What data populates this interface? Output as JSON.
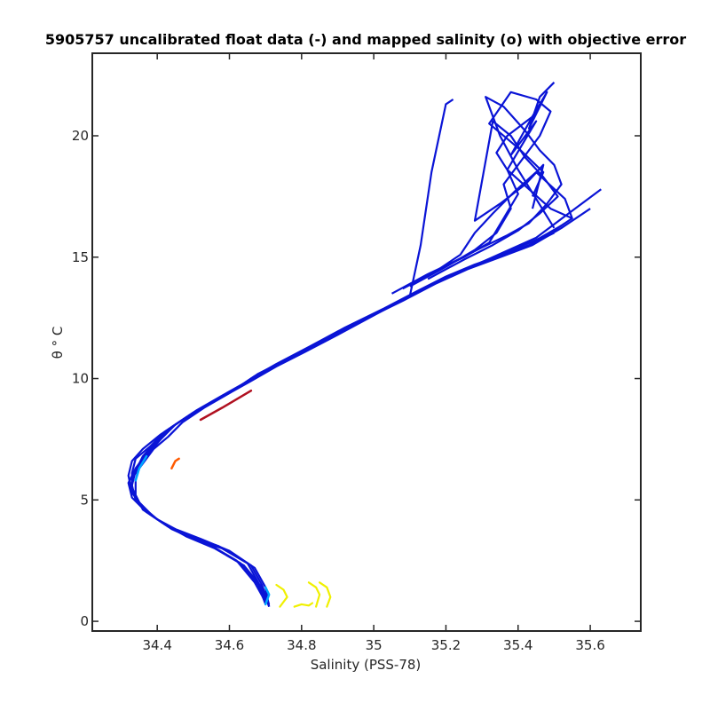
{
  "chart_data": {
    "type": "line",
    "title": "5905757 uncalibrated float data (-) and mapped salinity (o) with objective error",
    "xlabel": "Salinity (PSS-78)",
    "ylabel": "θ ° C",
    "xlim": [
      34.22,
      35.74
    ],
    "ylim": [
      -0.4,
      23.4
    ],
    "xticks": [
      "34.4",
      "34.6",
      "34.8",
      "35",
      "35.2",
      "35.4",
      "35.6"
    ],
    "yticks": [
      "0",
      "5",
      "10",
      "15",
      "20"
    ],
    "grid": false,
    "legend": "none",
    "colors": {
      "float_profiles": "#0a14d6",
      "deep_highlight": "#00a6ff",
      "mid_highlight": "#b01020",
      "orange_mark": "#ff5a00",
      "mapped_salinity": "#f0f000"
    },
    "series": [
      {
        "x": [
          34.71,
          34.7,
          34.67,
          34.6,
          34.52,
          34.45,
          34.4,
          34.36,
          34.33,
          34.32,
          34.33,
          34.36,
          34.41,
          34.47,
          34.54,
          34.6,
          34.66,
          34.73,
          34.82,
          34.92,
          35.03,
          35.12,
          35.2,
          35.28,
          35.36,
          35.43,
          35.5
        ],
        "y": [
          0.6,
          1.4,
          2.2,
          2.9,
          3.4,
          3.8,
          4.2,
          4.7,
          5.3,
          6.0,
          6.6,
          7.1,
          7.7,
          8.3,
          8.9,
          9.4,
          10.0,
          10.6,
          11.3,
          12.1,
          12.9,
          13.6,
          14.2,
          14.7,
          15.1,
          15.5,
          16.0
        ]
      },
      {
        "x": [
          34.71,
          34.69,
          34.66,
          34.58,
          34.5,
          34.44,
          34.39,
          34.35,
          34.33,
          34.33,
          34.34,
          34.38,
          34.42,
          34.48,
          34.55,
          34.61,
          34.67,
          34.75,
          34.84,
          34.94,
          35.05,
          35.14,
          35.22,
          35.3,
          35.38,
          35.45,
          35.52
        ],
        "y": [
          0.7,
          1.5,
          2.3,
          3.0,
          3.4,
          3.8,
          4.3,
          4.9,
          5.5,
          6.1,
          6.7,
          7.2,
          7.8,
          8.4,
          9.0,
          9.5,
          10.1,
          10.7,
          11.4,
          12.2,
          13.0,
          13.7,
          14.3,
          14.8,
          15.3,
          15.7,
          16.3
        ]
      },
      {
        "x": [
          34.7,
          34.68,
          34.65,
          34.57,
          34.49,
          34.43,
          34.38,
          34.34,
          34.33,
          34.34,
          34.36,
          34.39,
          34.43,
          34.49,
          34.56,
          34.62,
          34.68,
          34.76,
          34.85,
          34.95,
          35.06,
          35.15,
          35.24,
          35.32,
          35.4,
          35.48,
          35.55
        ],
        "y": [
          0.8,
          1.6,
          2.4,
          3.1,
          3.5,
          3.9,
          4.4,
          5.0,
          5.6,
          6.2,
          6.8,
          7.3,
          7.9,
          8.5,
          9.1,
          9.6,
          10.2,
          10.8,
          11.5,
          12.3,
          13.1,
          13.8,
          14.4,
          14.9,
          15.4,
          15.9,
          16.6
        ]
      },
      {
        "x": [
          34.71,
          34.69,
          34.64,
          34.56,
          34.48,
          34.42,
          34.37,
          34.33,
          34.32,
          34.34,
          34.37,
          34.4,
          34.44,
          34.5,
          34.57,
          34.63,
          34.7,
          34.78,
          34.87,
          34.97,
          35.08,
          35.17,
          35.26,
          35.35,
          35.44,
          35.52,
          35.6
        ],
        "y": [
          0.6,
          1.4,
          2.3,
          3.0,
          3.5,
          4.0,
          4.5,
          5.1,
          5.7,
          6.3,
          6.9,
          7.4,
          8.0,
          8.6,
          9.2,
          9.7,
          10.3,
          10.9,
          11.6,
          12.4,
          13.2,
          13.9,
          14.5,
          15.0,
          15.5,
          16.2,
          17.0
        ]
      },
      {
        "x": [
          34.7,
          34.68,
          34.63,
          34.55,
          34.47,
          34.41,
          34.36,
          34.34,
          34.34,
          34.35,
          34.38,
          34.41,
          34.45,
          34.51,
          34.58,
          34.64,
          34.71,
          34.79,
          34.88,
          34.98,
          35.09,
          35.18,
          35.27,
          35.36,
          35.45,
          35.54,
          35.63
        ],
        "y": [
          0.7,
          1.5,
          2.4,
          3.1,
          3.6,
          4.1,
          4.6,
          5.2,
          5.8,
          6.4,
          7.0,
          7.5,
          8.1,
          8.7,
          9.3,
          9.8,
          10.4,
          11.0,
          11.7,
          12.5,
          13.3,
          14.0,
          14.6,
          15.2,
          15.8,
          16.8,
          17.8
        ]
      },
      {
        "x": [
          34.7,
          34.67,
          34.62,
          34.54,
          34.46,
          34.4,
          34.36,
          34.33,
          34.33,
          34.36,
          34.39,
          34.43,
          34.47,
          34.53,
          34.6,
          34.66,
          34.73,
          34.81,
          34.9,
          35.0,
          35.1,
          35.13,
          35.16,
          35.2,
          35.22
        ],
        "y": [
          0.8,
          1.6,
          2.5,
          3.2,
          3.7,
          4.2,
          4.7,
          5.3,
          5.9,
          6.5,
          7.1,
          7.6,
          8.2,
          8.8,
          9.4,
          9.9,
          10.5,
          11.1,
          11.8,
          12.6,
          13.4,
          15.5,
          18.5,
          21.3,
          21.5
        ]
      },
      {
        "x": [
          35.05,
          35.15,
          35.25,
          35.32,
          35.36,
          35.4,
          35.37,
          35.41,
          35.45,
          35.38,
          35.44,
          35.48,
          35.43,
          35.46,
          35.5
        ],
        "y": [
          13.5,
          14.3,
          15.0,
          15.6,
          16.6,
          17.6,
          18.6,
          19.6,
          20.6,
          19.2,
          20.8,
          21.8,
          20.3,
          21.6,
          22.2
        ]
      },
      {
        "x": [
          35.1,
          35.2,
          35.28,
          35.34,
          35.38,
          35.36,
          35.41,
          35.46,
          35.49,
          35.45,
          35.38,
          35.32,
          35.4,
          35.47,
          35.44
        ],
        "y": [
          13.8,
          14.6,
          15.3,
          16.0,
          17.0,
          18.0,
          19.0,
          20.0,
          21.0,
          21.5,
          21.8,
          20.5,
          19.5,
          18.5,
          17.5
        ]
      },
      {
        "x": [
          35.12,
          35.22,
          35.3,
          35.37,
          35.43,
          35.48,
          35.52,
          35.5,
          35.46,
          35.42,
          35.36,
          35.31,
          35.35,
          35.4,
          35.45,
          35.5
        ],
        "y": [
          14.0,
          14.8,
          15.4,
          15.9,
          16.4,
          17.2,
          18.0,
          18.8,
          19.4,
          20.2,
          21.2,
          21.6,
          20.0,
          18.6,
          17.4,
          16.2
        ]
      },
      {
        "x": [
          35.15,
          35.25,
          35.33,
          35.4,
          35.46,
          35.51,
          35.47,
          35.42,
          35.38,
          35.33,
          35.28,
          35.35,
          35.42,
          35.47,
          35.44
        ],
        "y": [
          14.1,
          14.9,
          15.5,
          16.1,
          16.8,
          17.5,
          18.3,
          19.1,
          20.0,
          20.6,
          16.5,
          17.2,
          18.0,
          18.8,
          17.0
        ]
      },
      {
        "x": [
          35.08,
          35.17,
          35.24,
          35.28,
          35.33,
          35.39,
          35.45,
          35.53,
          35.55,
          35.49,
          35.43,
          35.37,
          35.34,
          35.37,
          35.45
        ],
        "y": [
          13.7,
          14.4,
          15.1,
          16.0,
          16.8,
          17.7,
          18.5,
          17.4,
          16.6,
          17.0,
          17.8,
          18.6,
          19.3,
          20.0,
          20.9
        ]
      }
    ]
  }
}
